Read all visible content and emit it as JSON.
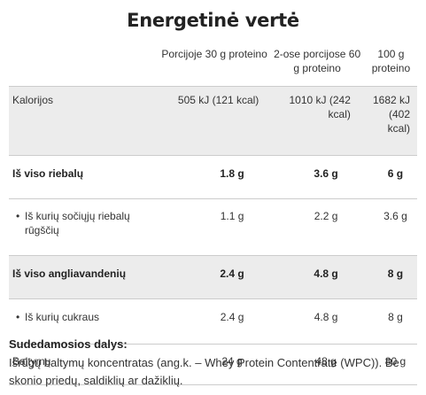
{
  "title": "Energetinė vertė",
  "table": {
    "headers": [
      "",
      "Porcijoje 30 g proteino",
      "2-ose porcijose 60 g proteino",
      "100 g proteino"
    ],
    "rows": [
      {
        "label": "Kalorijos",
        "v1": "505 kJ (121 kcal)",
        "v2": "1010 kJ (242 kcal)",
        "v3": "1682 kJ (402 kcal)"
      },
      {
        "label": "Iš viso riebalų",
        "v1": "1.8 g",
        "v2": "3.6 g",
        "v3": "6 g"
      },
      {
        "label": "Iš kurių sočiųjų riebalų rūgščių",
        "bullet": "•",
        "v1": "1.1 g",
        "v2": "2.2 g",
        "v3": "3.6 g"
      },
      {
        "label": "Iš viso angliavandenių",
        "v1": "2.4 g",
        "v2": "4.8 g",
        "v3": "8 g"
      },
      {
        "label": "Iš kurių cukraus",
        "bullet": "•",
        "v1": "2.4 g",
        "v2": "4.8 g",
        "v3": "8 g"
      },
      {
        "label": "Baltymų",
        "v1": "24 g",
        "v2": "48 g",
        "v3": "80 g"
      }
    ]
  },
  "ingredients": {
    "title": "Sudedamosios dalys:",
    "text": "Išrūgų baltymų koncentratas (ang.k. – Whey Protein Contentrate (WPC)). Be skonio priedų, saldiklių ar dažiklių."
  },
  "colors": {
    "row_shade": "#ececec",
    "rule": "#cccccc",
    "text": "#333333"
  }
}
